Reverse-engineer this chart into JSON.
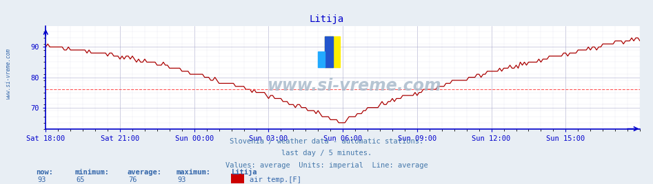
{
  "title": "Litija",
  "title_color": "#0000cc",
  "bg_color": "#e8eef4",
  "plot_bg_color": "#ffffff",
  "grid_major_color": "#aaaacc",
  "grid_minor_color": "#ddddee",
  "line_color": "#aa0000",
  "avg_line_color": "#ff4444",
  "avg_value": 76,
  "y_min": 63,
  "y_max": 97,
  "y_ticks": [
    70,
    80,
    90
  ],
  "x_tick_labels": [
    "Sat 18:00",
    "Sat 21:00",
    "Sun 00:00",
    "Sun 03:00",
    "Sun 06:00",
    "Sun 09:00",
    "Sun 12:00",
    "Sun 15:00"
  ],
  "x_tick_positions": [
    0,
    36,
    72,
    108,
    144,
    180,
    216,
    252
  ],
  "total_points": 289,
  "subtitle1": "Slovenia / weather data - automatic stations.",
  "subtitle2": "last day / 5 minutes.",
  "subtitle3": "Values: average  Units: imperial  Line: average",
  "subtitle_color": "#4477aa",
  "watermark": "www.si-vreme.com",
  "watermark_color": "#aabbcc",
  "sidebar_text": "www.si-vreme.com",
  "sidebar_color": "#3366aa",
  "footer_labels": [
    "now:",
    "minimum:",
    "average:",
    "maximum:",
    "Litija"
  ],
  "footer_values": [
    "93",
    "65",
    "76",
    "93"
  ],
  "footer_color": "#3366aa",
  "legend_label": "air temp.[F]",
  "legend_color": "#cc0000",
  "axis_color": "#0000cc",
  "tick_color": "#3366aa",
  "tick_fontsize": 7.5,
  "title_fontsize": 10,
  "subtitle_fontsize": 7.5
}
